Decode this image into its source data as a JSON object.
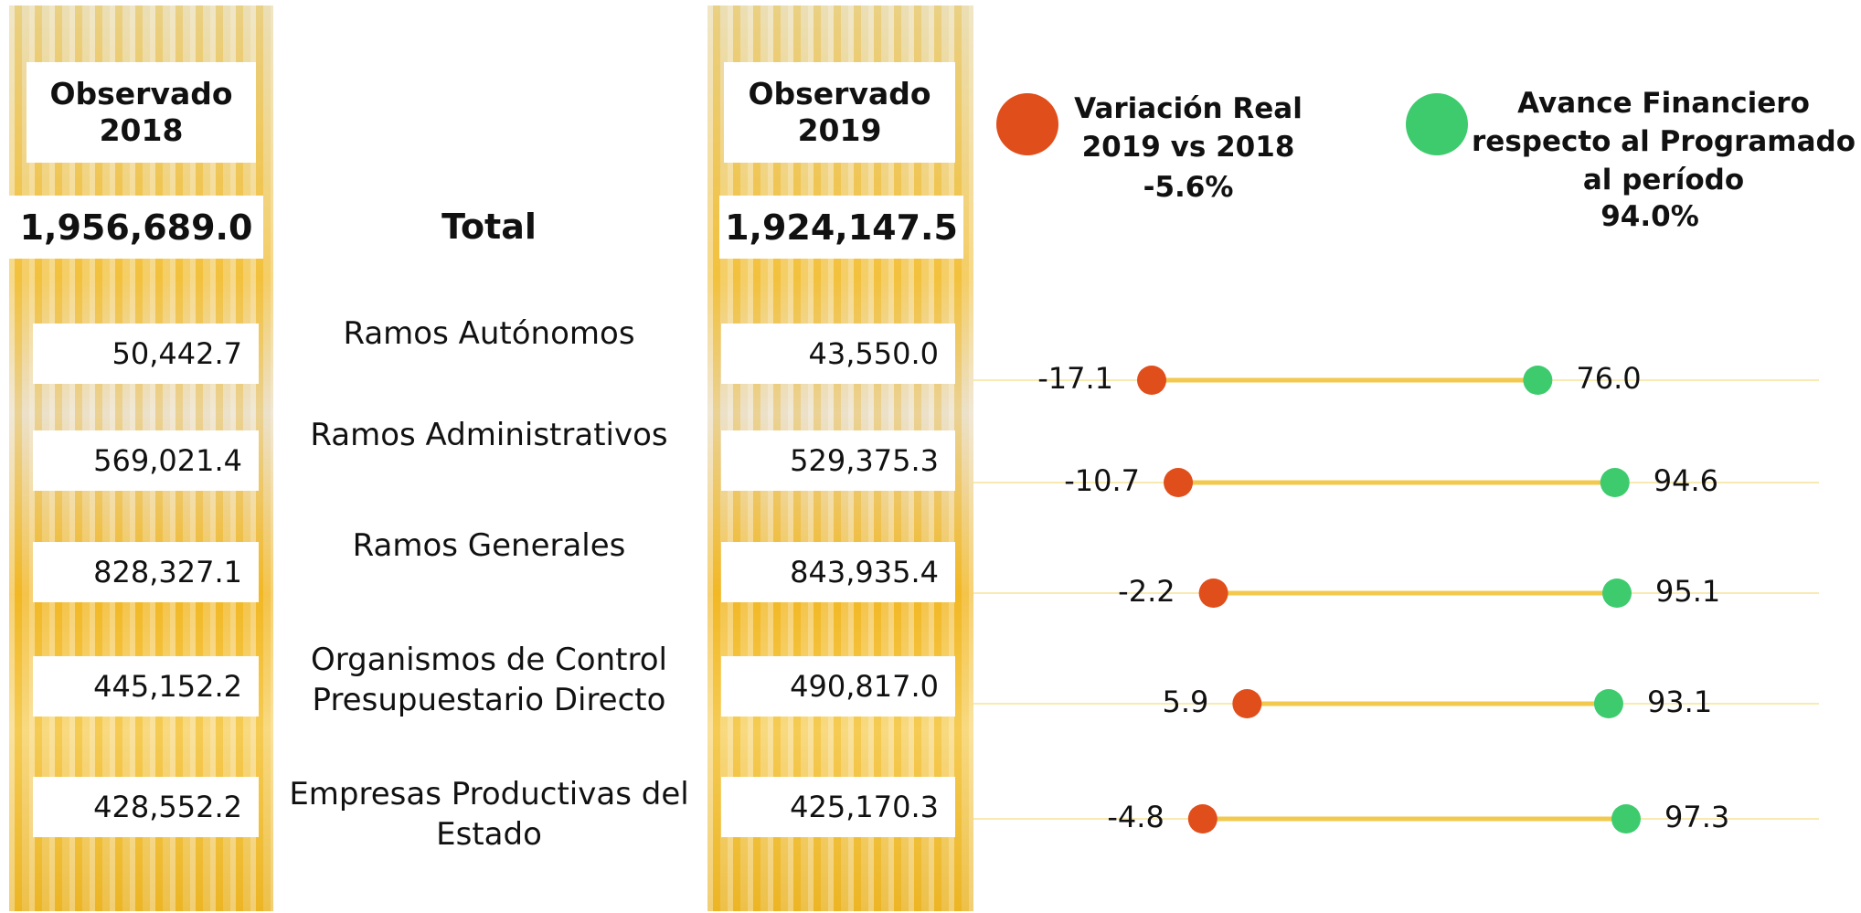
{
  "table": {
    "total_label": "Total",
    "col2018": {
      "header": "Observado 2018",
      "total": "1,956,689.0",
      "values": [
        "50,442.7",
        "569,021.4",
        "828,327.1",
        "445,152.2",
        "428,552.2"
      ]
    },
    "col2019": {
      "header": "Observado 2019",
      "total": "1,924,147.5",
      "values": [
        "43,550.0",
        "529,375.3",
        "843,935.4",
        "490,817.0",
        "425,170.3"
      ]
    }
  },
  "chart_data": {
    "type": "dumbbell",
    "categories": [
      "Ramos Autónomos",
      "Ramos Administrativos",
      "Ramos Generales",
      "Organismos de Control Presupuestario Directo",
      "Empresas Productivas del Estado"
    ],
    "series": [
      {
        "name": "Variación Real 2019 vs 2018",
        "total_label": "-5.6%",
        "color": "#e04e1b",
        "values": [
          -17.1,
          -10.7,
          -2.2,
          5.9,
          -4.8
        ]
      },
      {
        "name": "Avance Financiero respecto al Programado al período",
        "total_label": "94.0%",
        "color": "#3ecb6e",
        "values": [
          76.0,
          94.6,
          95.1,
          93.1,
          97.3
        ],
        "value_labels": [
          "76.0",
          "94.6",
          "95.1",
          "93.1",
          "97.3"
        ]
      }
    ]
  }
}
